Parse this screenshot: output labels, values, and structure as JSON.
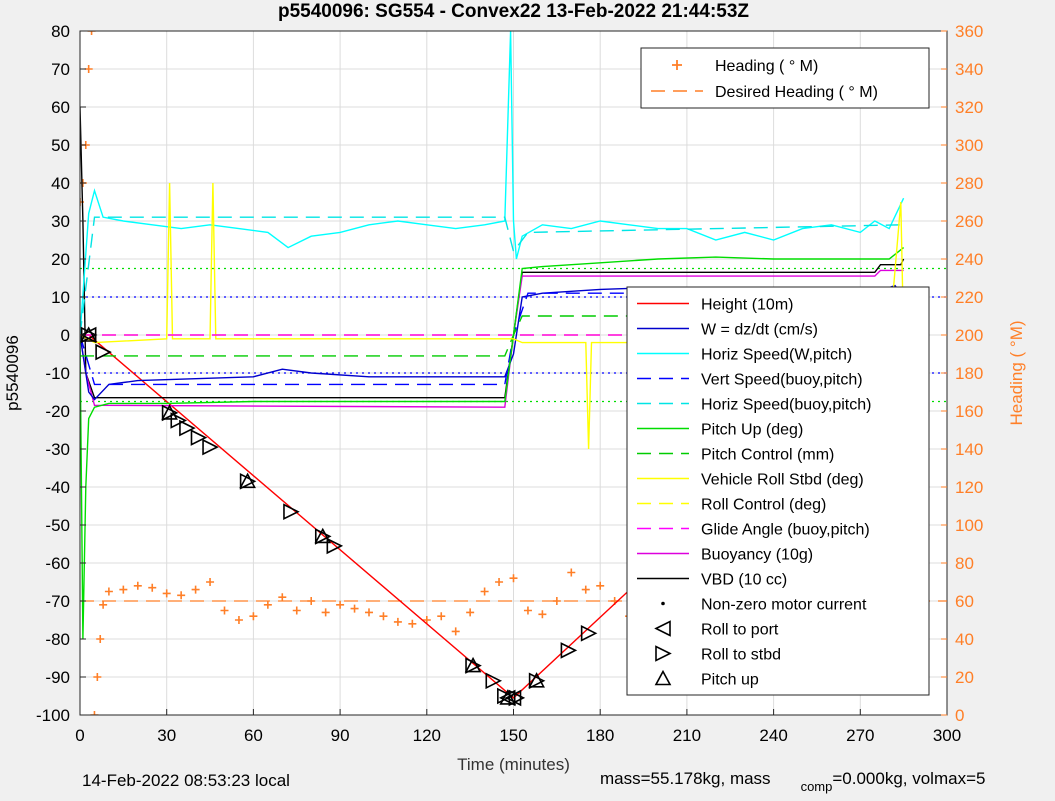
{
  "chart_data": {
    "type": "line",
    "title": "p5540096: SG554 - Convex22 13-Feb-2022 21:44:53Z",
    "xlabel": "Time (minutes)",
    "ylabel_left": "p5540096",
    "ylabel_right": "Heading (  °M)",
    "xlim": [
      0,
      300
    ],
    "ylim_left": [
      -100,
      80
    ],
    "ylim_right": [
      0,
      360
    ],
    "x_ticks": [
      "0",
      "30",
      "60",
      "90",
      "120",
      "150",
      "180",
      "210",
      "240",
      "270",
      "300"
    ],
    "y_ticks_left": [
      "-100",
      "-90",
      "-80",
      "-70",
      "-60",
      "-50",
      "-40",
      "-30",
      "-20",
      "-10",
      "0",
      "10",
      "20",
      "30",
      "40",
      "50",
      "60",
      "70",
      "80"
    ],
    "y_ticks_right": [
      "0",
      "20",
      "40",
      "60",
      "80",
      "100",
      "120",
      "140",
      "160",
      "180",
      "200",
      "220",
      "240",
      "260",
      "280",
      "300",
      "320",
      "340",
      "360"
    ],
    "grid": true,
    "colors": {
      "height": "#ff0000",
      "w": "#0000cc",
      "horiz_speed": "#00ffff",
      "vert_speed": "#0000ff",
      "horiz_speed_buoy": "#00e5e5",
      "pitch": "#00dd00",
      "pitch_control": "#00cc00",
      "roll": "#ffff00",
      "roll_control": "#ffff00",
      "glide_angle": "#ff00ff",
      "buoyancy": "#dd00dd",
      "vbd": "#000000",
      "heading": "#ff7f27"
    },
    "legend_heading": [
      {
        "label": "Heading (  ° M)",
        "style": "plus",
        "color": "#ff7f27"
      },
      {
        "label": "Desired Heading (    ° M)",
        "style": "dash",
        "color": "#ff7f27"
      }
    ],
    "legend_main": [
      {
        "label": "Height (10m)",
        "style": "solid",
        "color": "#ff0000"
      },
      {
        "label": "W = dz/dt (cm/s)",
        "style": "solid",
        "color": "#0000cc"
      },
      {
        "label": "Horiz Speed(W,pitch)",
        "style": "solid",
        "color": "#00ffff"
      },
      {
        "label": "Vert Speed(buoy,pitch)",
        "style": "dash",
        "color": "#0000ff"
      },
      {
        "label": "Horiz Speed(buoy,pitch)",
        "style": "dash",
        "color": "#00e5e5"
      },
      {
        "label": "Pitch Up (deg)",
        "style": "solid",
        "color": "#00dd00"
      },
      {
        "label": "Pitch Control (mm)",
        "style": "dash",
        "color": "#00cc00"
      },
      {
        "label": "Vehicle Roll Stbd (deg)",
        "style": "solid",
        "color": "#ffff00"
      },
      {
        "label": "Roll Control (deg)",
        "style": "dash",
        "color": "#ffff00"
      },
      {
        "label": "Glide Angle (buoy,pitch)",
        "style": "dash",
        "color": "#ff00ff"
      },
      {
        "label": "Buoyancy (10g)",
        "style": "solid",
        "color": "#dd00dd"
      },
      {
        "label": "VBD (10 cc)",
        "style": "solid",
        "color": "#000000"
      },
      {
        "label": "Non-zero motor current",
        "style": "dot",
        "color": "#000000"
      },
      {
        "label": "Roll to port",
        "style": "tri-left",
        "color": "#000000"
      },
      {
        "label": "Roll to stbd",
        "style": "tri-right",
        "color": "#000000"
      },
      {
        "label": "Pitch up",
        "style": "tri-up",
        "color": "#000000"
      }
    ],
    "series": [
      {
        "key": "height",
        "axis": "left",
        "style": "solid",
        "x": [
          0,
          3,
          150,
          285
        ],
        "y": [
          0,
          0,
          -95.5,
          0
        ]
      },
      {
        "key": "vbd",
        "axis": "left",
        "style": "solid",
        "x": [
          0,
          1,
          2,
          5,
          147,
          150,
          153,
          275,
          277,
          284,
          285
        ],
        "y": [
          60,
          30,
          -10,
          -16.5,
          -16.5,
          0,
          16.5,
          16.5,
          18.5,
          18.5,
          20
        ]
      },
      {
        "key": "buoyancy",
        "axis": "left",
        "style": "solid",
        "x": [
          0,
          2,
          5,
          147,
          150,
          153,
          275,
          277,
          285
        ],
        "y": [
          0,
          -10,
          -18.5,
          -19,
          0,
          15.5,
          15.5,
          17,
          17
        ]
      },
      {
        "key": "w",
        "axis": "left",
        "style": "solid",
        "x": [
          0,
          3,
          5,
          10,
          20,
          40,
          60,
          70,
          80,
          100,
          120,
          140,
          147,
          150,
          153,
          160,
          180,
          200,
          220,
          240,
          260,
          275,
          278,
          282,
          285
        ],
        "y": [
          0,
          -15,
          -17,
          -13,
          -12,
          -11.5,
          -11,
          -9,
          -10,
          -11,
          -11,
          -11,
          -11,
          -5,
          10,
          11,
          12,
          12.5,
          12,
          12.5,
          12,
          11.5,
          12,
          13,
          10
        ]
      },
      {
        "key": "horiz_speed",
        "axis": "left",
        "style": "solid",
        "x": [
          0,
          3,
          5,
          8,
          15,
          25,
          35,
          45,
          55,
          65,
          72,
          80,
          90,
          100,
          110,
          120,
          130,
          140,
          147,
          149,
          150,
          151,
          153,
          160,
          170,
          180,
          190,
          200,
          210,
          220,
          230,
          240,
          250,
          260,
          270,
          275,
          280,
          285
        ],
        "y": [
          0,
          32,
          38,
          31,
          30,
          29,
          28,
          29,
          28,
          27,
          23,
          26,
          27,
          29,
          30,
          29,
          28,
          29,
          30,
          80,
          30,
          20,
          26,
          29,
          28,
          30,
          29,
          28,
          28,
          25,
          27,
          25,
          28,
          29,
          27,
          30,
          28,
          36
        ]
      },
      {
        "key": "horiz_speed_buoy",
        "axis": "left",
        "style": "dash",
        "x": [
          0,
          5,
          147,
          150,
          155,
          285
        ],
        "y": [
          0,
          31,
          31,
          22,
          27,
          29
        ]
      },
      {
        "key": "vert_speed",
        "axis": "left",
        "style": "dash",
        "x": [
          0,
          5,
          147,
          150,
          155,
          285
        ],
        "y": [
          0,
          -13,
          -13,
          0,
          11,
          11
        ]
      },
      {
        "key": "pitch",
        "axis": "left",
        "style": "solid",
        "x": [
          0,
          1,
          2,
          3,
          5,
          10,
          30,
          60,
          90,
          120,
          147,
          150,
          153,
          160,
          180,
          200,
          220,
          240,
          260,
          280,
          285
        ],
        "y": [
          0,
          -80,
          -40,
          -22,
          -19,
          -18,
          -18,
          -17.5,
          -17.5,
          -17.5,
          -17.5,
          0,
          17.5,
          18,
          19,
          20,
          20.5,
          20,
          20,
          20,
          23
        ]
      },
      {
        "key": "pitch_control",
        "axis": "left",
        "style": "dash",
        "x": [
          0,
          5,
          147,
          150,
          153,
          285
        ],
        "y": [
          -5.5,
          -5.5,
          -5.5,
          0,
          5,
          5
        ]
      },
      {
        "key": "roll",
        "axis": "left",
        "style": "solid",
        "x": [
          0,
          5,
          30,
          31,
          32,
          45,
          46,
          47,
          90,
          140,
          147,
          150,
          153,
          175,
          176,
          177,
          200,
          260,
          280,
          284,
          285
        ],
        "y": [
          0,
          -2,
          -1,
          40,
          -1,
          -1,
          40,
          -1,
          -1,
          -1,
          -1,
          -1,
          -2,
          -2,
          -30,
          -2,
          -2,
          -1,
          -1,
          35,
          -1
        ]
      },
      {
        "key": "roll_control",
        "axis": "left",
        "style": "dash",
        "x": [
          0,
          285
        ],
        "y": [
          0,
          0
        ]
      },
      {
        "key": "glide_angle",
        "axis": "left",
        "style": "dash",
        "x": [
          0,
          285
        ],
        "y": [
          0,
          0
        ]
      }
    ],
    "reference_lines": [
      {
        "axis": "left",
        "y": 10,
        "color": "#0000ff",
        "style": "dot"
      },
      {
        "axis": "left",
        "y": -10,
        "color": "#0000ff",
        "style": "dot"
      },
      {
        "axis": "left",
        "y": 17.5,
        "color": "#00dd00",
        "style": "dot"
      },
      {
        "axis": "left",
        "y": -17.5,
        "color": "#00dd00",
        "style": "dot"
      }
    ],
    "heading": {
      "axis": "right",
      "desired": 60,
      "x": [
        0,
        1,
        2,
        3,
        4,
        5,
        6,
        7,
        8,
        10,
        15,
        20,
        25,
        30,
        35,
        40,
        45,
        50,
        55,
        60,
        65,
        70,
        75,
        80,
        85,
        90,
        95,
        100,
        105,
        110,
        115,
        120,
        125,
        130,
        135,
        140,
        145,
        150,
        155,
        160,
        165,
        170,
        175,
        180,
        185,
        190,
        195,
        200,
        205,
        210,
        215,
        220,
        225,
        230,
        235,
        240,
        245,
        250,
        255,
        260,
        265,
        270,
        275,
        280,
        285
      ],
      "y": [
        270,
        280,
        300,
        340,
        360,
        0,
        20,
        40,
        58,
        65,
        66,
        68,
        67,
        64,
        63,
        66,
        70,
        55,
        50,
        52,
        58,
        62,
        55,
        60,
        54,
        58,
        56,
        54,
        52,
        49,
        48,
        50,
        52,
        44,
        54,
        65,
        70,
        72,
        55,
        53,
        60,
        75,
        66,
        68,
        60,
        52,
        56,
        62,
        64,
        62,
        61,
        63,
        58,
        57,
        60,
        65,
        62,
        60,
        56,
        60,
        62,
        59,
        56,
        66,
        45
      ]
    },
    "markers": {
      "tri_left": [
        [
          3,
          0
        ],
        [
          148,
          -95.5
        ],
        [
          150,
          -95.5
        ],
        [
          285,
          0
        ]
      ],
      "tri_right": [
        [
          3,
          0
        ],
        [
          8,
          -4.5
        ],
        [
          31,
          -20.5
        ],
        [
          34,
          -22.5
        ],
        [
          37,
          -24.5
        ],
        [
          41,
          -27
        ],
        [
          45,
          -29.5
        ],
        [
          58,
          -38.5
        ],
        [
          73,
          -46.5
        ],
        [
          84,
          -53
        ],
        [
          88,
          -55.5
        ],
        [
          136,
          -87
        ],
        [
          143,
          -91
        ],
        [
          147,
          -95
        ],
        [
          151,
          -95.5
        ],
        [
          158,
          -91
        ],
        [
          169,
          -83
        ],
        [
          176,
          -78.5
        ],
        [
          201,
          -60
        ],
        [
          218,
          -47
        ],
        [
          247,
          -27.5
        ],
        [
          276,
          -5.5
        ],
        [
          283,
          -0.5
        ],
        [
          285,
          0
        ]
      ],
      "tri_up": [
        [
          3,
          0
        ],
        [
          31,
          -20.5
        ],
        [
          58,
          -38.5
        ],
        [
          84,
          -53
        ],
        [
          136,
          -87
        ],
        [
          148,
          -95.5
        ],
        [
          158,
          -91
        ],
        [
          201,
          -60
        ],
        [
          247,
          -27.5
        ],
        [
          283,
          -0.5
        ]
      ]
    }
  },
  "footer": {
    "local_time": "14-Feb-2022 08:53:23 local",
    "mass_text_a": "mass=55.178kg, mass",
    "mass_sub": "comp",
    "mass_text_b": "=0.000kg, volmax=5"
  }
}
